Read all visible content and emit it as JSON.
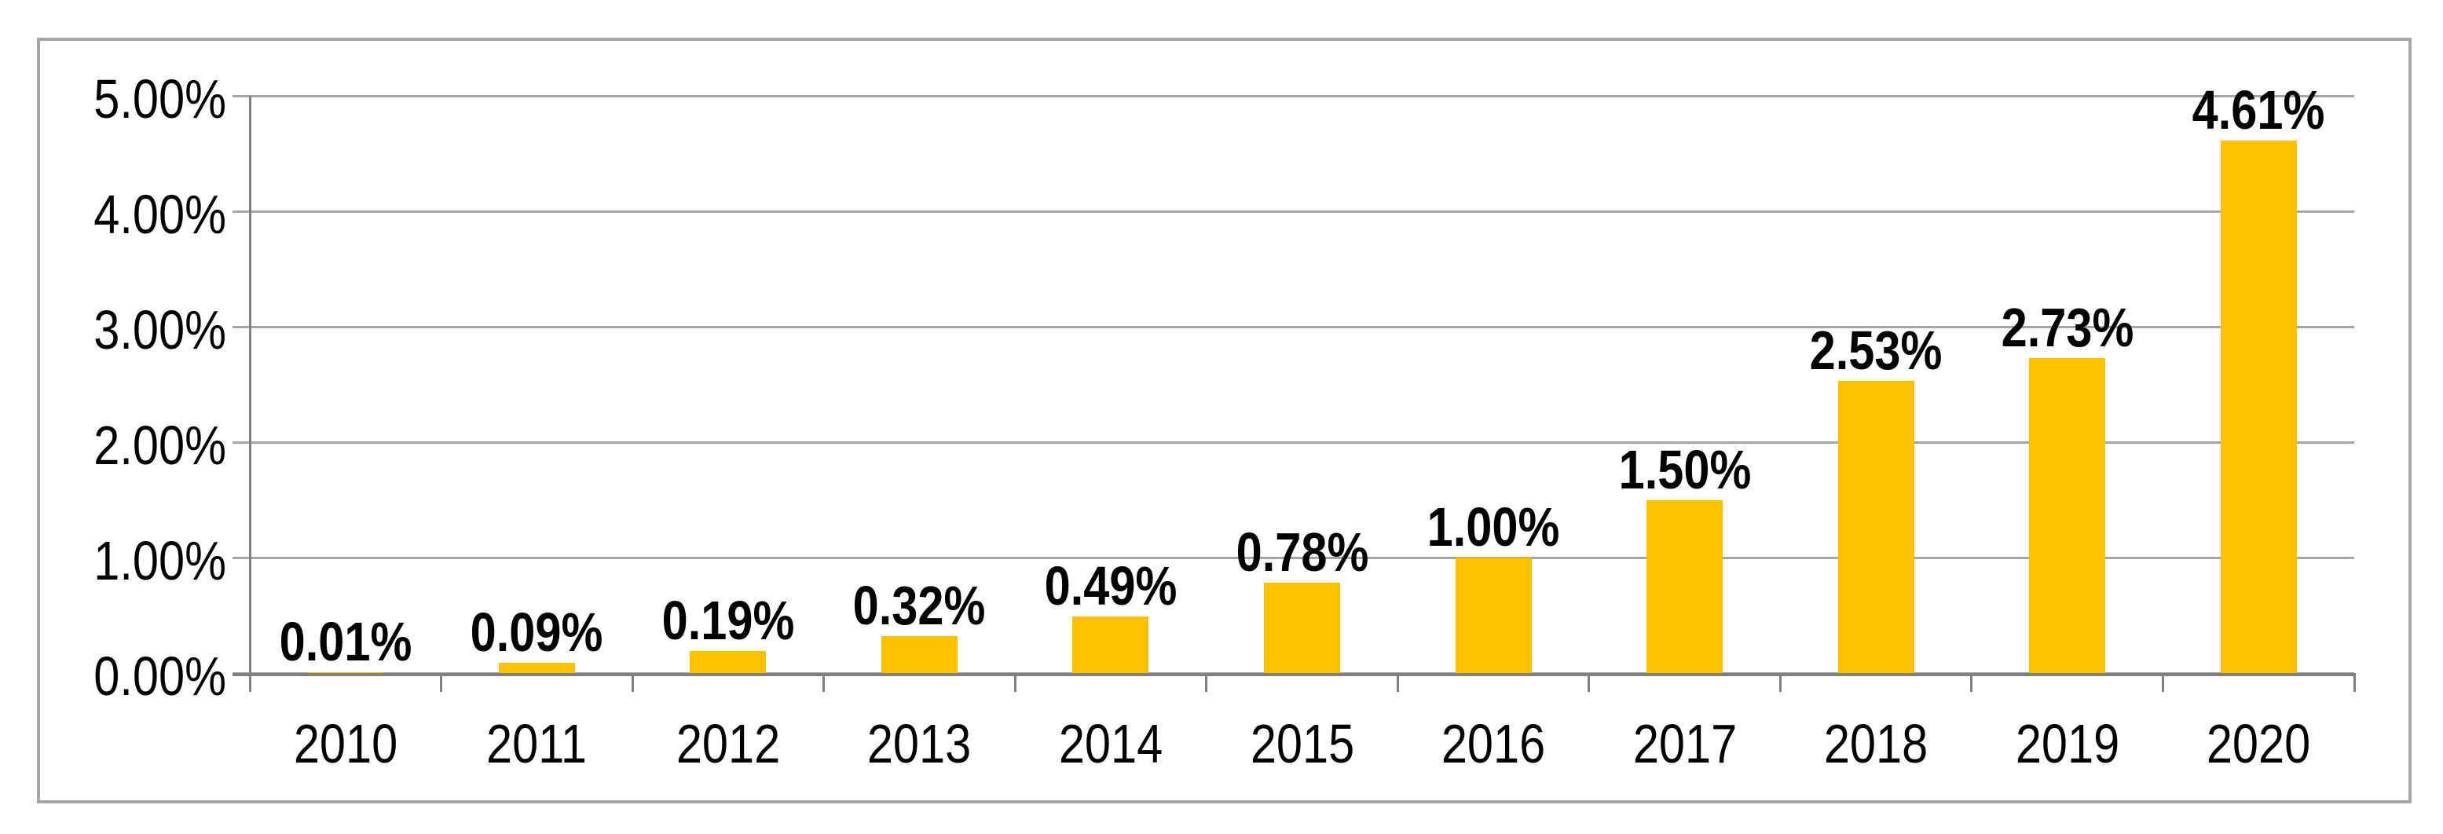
{
  "chart_data": {
    "type": "bar",
    "title": "",
    "xlabel": "",
    "ylabel": "",
    "categories": [
      "2010",
      "2011",
      "2012",
      "2013",
      "2014",
      "2015",
      "2016",
      "2017",
      "2018",
      "2019",
      "2020"
    ],
    "values": [
      0.01,
      0.09,
      0.19,
      0.32,
      0.49,
      0.78,
      1.0,
      1.5,
      2.53,
      2.73,
      4.61
    ],
    "data_labels": [
      "0.01%",
      "0.09%",
      "0.19%",
      "0.32%",
      "0.49%",
      "0.78%",
      "1.00%",
      "1.50%",
      "2.53%",
      "2.73%",
      "4.61%"
    ],
    "y_tick_labels": [
      "0.00%",
      "1.00%",
      "2.00%",
      "3.00%",
      "4.00%",
      "5.00%"
    ],
    "ylim": [
      0,
      5
    ],
    "grid": true,
    "legend": false,
    "colors": {
      "bar": "#FFC000",
      "gridline": "#A6A6A6",
      "axis": "#808080",
      "frame_border": "#A6A6A6",
      "label_text": "#000000",
      "background": "#FFFFFF"
    }
  }
}
